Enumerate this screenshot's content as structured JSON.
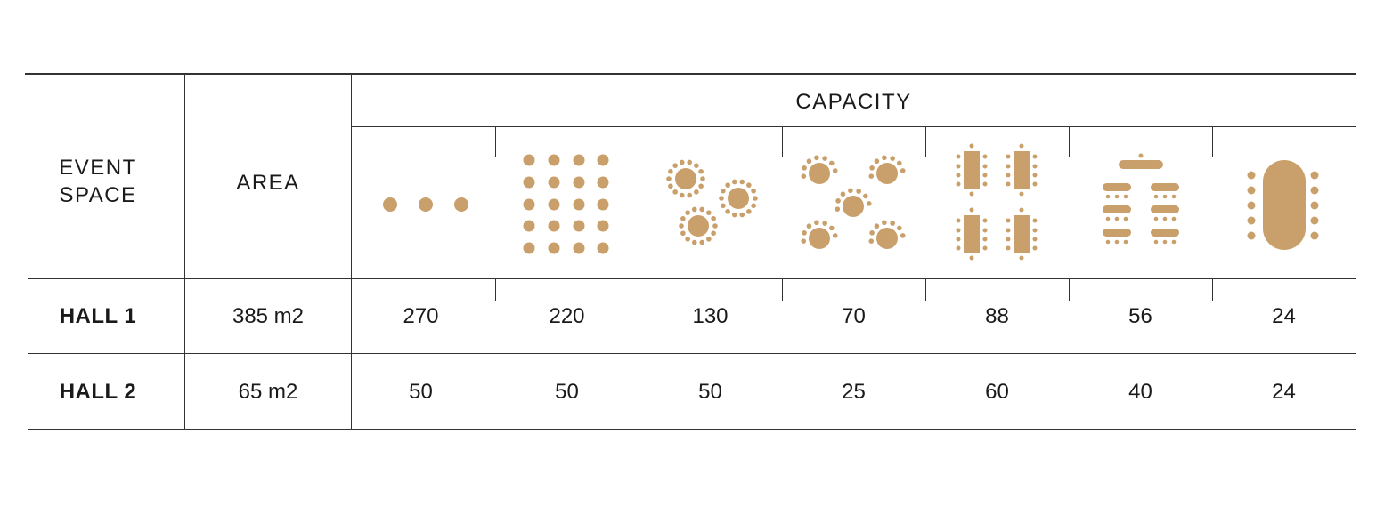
{
  "header": {
    "event_space_line1": "EVENT",
    "event_space_line2": "SPACE",
    "area": "AREA",
    "capacity": "CAPACITY"
  },
  "layouts": [
    {
      "icon": "theatre-layout-icon"
    },
    {
      "icon": "classroom-grid-layout-icon"
    },
    {
      "icon": "banquet-round-tables-icon"
    },
    {
      "icon": "cabaret-round-tables-icon"
    },
    {
      "icon": "rectangular-tables-layout-icon"
    },
    {
      "icon": "u-shape-classroom-layout-icon"
    },
    {
      "icon": "boardroom-oval-table-icon"
    }
  ],
  "rows": [
    {
      "name": "HALL 1",
      "area": "385 m2",
      "capacities": [
        "270",
        "220",
        "130",
        "70",
        "88",
        "56",
        "24"
      ]
    },
    {
      "name": "HALL 2",
      "area": "65 m2",
      "capacities": [
        "50",
        "50",
        "50",
        "25",
        "60",
        "40",
        "24"
      ]
    }
  ],
  "colors": {
    "icon_fill": "#c9a06b",
    "lines": "#333333"
  }
}
